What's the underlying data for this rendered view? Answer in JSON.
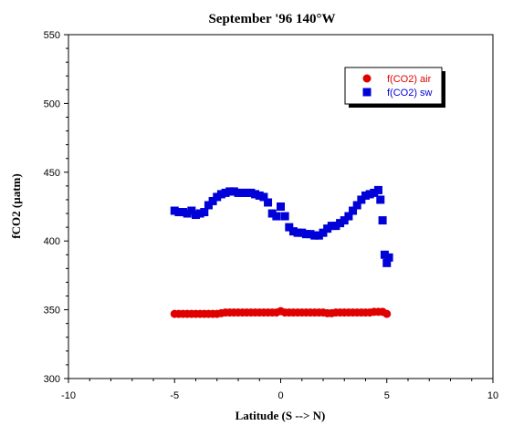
{
  "chart_data": {
    "type": "scatter",
    "title": "September '96 140°W",
    "xlabel": "Latitude (S --> N)",
    "ylabel": "fCO2 (µatm)",
    "xlim": [
      -10,
      10
    ],
    "ylim": [
      300,
      550
    ],
    "xticks": [
      -10,
      -5,
      0,
      5,
      10
    ],
    "yticks": [
      300,
      350,
      400,
      450,
      500,
      550
    ],
    "xtick_labels": [
      "-10",
      "-5",
      "0",
      "5",
      "10"
    ],
    "ytick_labels": [
      "300",
      "350",
      "400",
      "450",
      "500",
      "550"
    ],
    "legend_position": "top-right",
    "grid": false,
    "series": [
      {
        "name": "f(CO2) air",
        "color": "#e00000",
        "marker": "circle",
        "x": [
          -5.0,
          -4.8,
          -4.6,
          -4.4,
          -4.2,
          -4.0,
          -3.8,
          -3.6,
          -3.4,
          -3.2,
          -3.0,
          -2.8,
          -2.6,
          -2.4,
          -2.2,
          -2.0,
          -1.8,
          -1.6,
          -1.4,
          -1.2,
          -1.0,
          -0.8,
          -0.6,
          -0.4,
          -0.2,
          0.0,
          0.2,
          0.4,
          0.6,
          0.8,
          1.0,
          1.2,
          1.4,
          1.6,
          1.8,
          2.0,
          2.2,
          2.4,
          2.6,
          2.8,
          3.0,
          3.2,
          3.4,
          3.6,
          3.8,
          4.0,
          4.2,
          4.4,
          4.6,
          4.8,
          5.0
        ],
        "y": [
          347,
          347,
          347,
          347,
          347,
          347,
          347,
          347,
          347,
          347,
          347,
          347.5,
          348,
          348,
          348,
          348,
          348,
          348,
          348,
          348,
          348,
          348,
          348,
          348,
          348,
          349,
          348,
          348,
          348,
          348,
          348,
          348,
          348,
          348,
          348,
          348,
          347.5,
          347.5,
          348,
          348,
          348,
          348,
          348,
          348,
          348,
          348,
          348,
          348.5,
          348.5,
          348.5,
          347
        ]
      },
      {
        "name": "f(CO2) sw",
        "color": "#0000d8",
        "marker": "square",
        "x": [
          -5.0,
          -4.8,
          -4.6,
          -4.4,
          -4.2,
          -4.0,
          -3.8,
          -3.6,
          -3.4,
          -3.2,
          -3.0,
          -2.8,
          -2.6,
          -2.4,
          -2.2,
          -2.0,
          -1.8,
          -1.6,
          -1.4,
          -1.2,
          -1.0,
          -0.8,
          -0.6,
          -0.4,
          -0.2,
          0.0,
          0.2,
          0.4,
          0.6,
          0.8,
          1.0,
          1.2,
          1.4,
          1.6,
          1.8,
          2.0,
          2.2,
          2.4,
          2.6,
          2.8,
          3.0,
          3.2,
          3.4,
          3.6,
          3.8,
          4.0,
          4.2,
          4.4,
          4.6,
          4.7,
          4.8,
          4.9,
          5.0,
          5.1
        ],
        "y": [
          422,
          421,
          421,
          420,
          422,
          419,
          420,
          421,
          426,
          429,
          432,
          434,
          435,
          436,
          436,
          435,
          435,
          435,
          435,
          434,
          433,
          432,
          428,
          420,
          418,
          425,
          418,
          410,
          407,
          406,
          406,
          405,
          405,
          404,
          404,
          406,
          409,
          411,
          411,
          413,
          415,
          418,
          422,
          426,
          430,
          433,
          434,
          435,
          437,
          430,
          415,
          390,
          384,
          388
        ]
      }
    ]
  }
}
